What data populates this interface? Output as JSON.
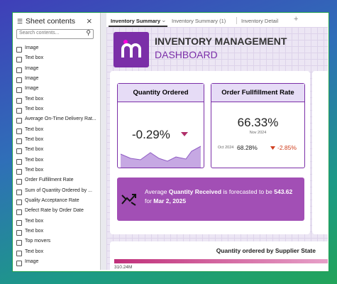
{
  "sidebar": {
    "title": "Sheet contents",
    "search_placeholder": "Search contents...",
    "items": [
      "Image",
      "Text box",
      "Image",
      "Image",
      "Image",
      "Text box",
      "Text box",
      "Average On-Time Delivery Rat...",
      "Text box",
      "Text box",
      "Text box",
      "Text box",
      "Text box",
      "Order Fulfillment Rate",
      "Sum of Quantity Ordered by ...",
      "Quality Acceptance Rate",
      "Defect Rate by Order Date",
      "Text box",
      "Text box",
      "Top movers",
      "Text box",
      "Image"
    ]
  },
  "tabs": [
    "Inventory Summary",
    "Inventory Summary (1)",
    "Inventory Detail"
  ],
  "header": {
    "title": "INVENTORY MANAGEMENT",
    "subtitle": "DASHBOARD"
  },
  "quantity_card": {
    "title": "Quantity Ordered",
    "value": "-0.29%"
  },
  "fulfillment_card": {
    "title": "Order Fullfillment Rate",
    "value": "66.33%",
    "period": "Nov 2024",
    "compare_period": "Oct 2024",
    "compare_value": "68.28%",
    "change": "-2.85%"
  },
  "forecast": {
    "parts": [
      "Average ",
      "Quantity Received",
      " is forecasted to be ",
      "543.62",
      " for ",
      "Mar 2, 2025"
    ]
  },
  "bottom_panel": {
    "title": "Quantity ordered by Supplier State",
    "axis_label": "310.24M"
  }
}
